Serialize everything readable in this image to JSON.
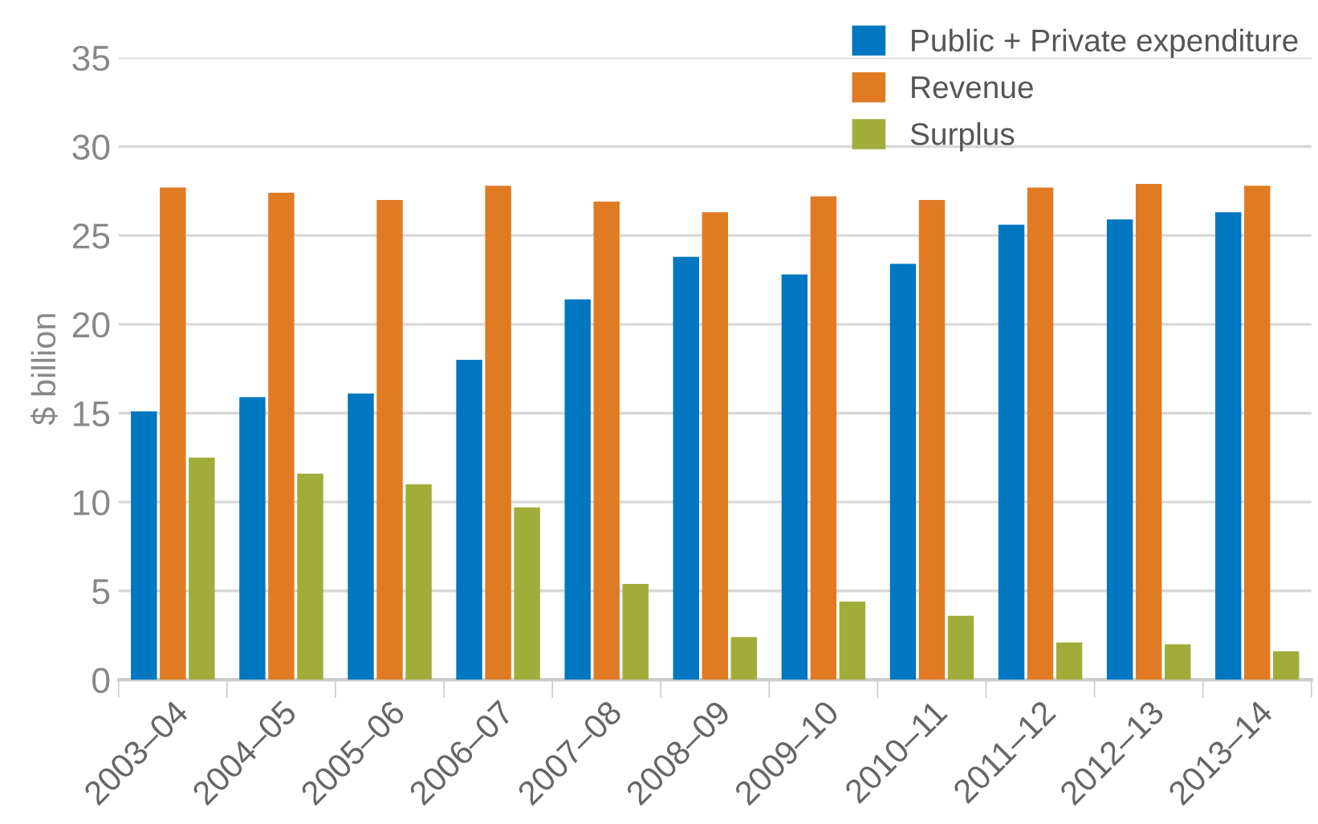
{
  "chart_data": {
    "type": "bar",
    "ylabel": "$ billion",
    "categories": [
      "2003–04",
      "2004–05",
      "2005–06",
      "2006–07",
      "2007–08",
      "2008–09",
      "2009–10",
      "2010–11",
      "2011–12",
      "2012–13",
      "2013–14"
    ],
    "series": [
      {
        "name": "Public + Private expenditure",
        "color": "#0077c0",
        "values": [
          15.1,
          15.9,
          16.1,
          18.0,
          21.4,
          23.8,
          22.8,
          23.4,
          25.6,
          25.9,
          26.3
        ]
      },
      {
        "name": "Revenue",
        "color": "#e07b24",
        "values": [
          27.7,
          27.4,
          27.0,
          27.8,
          26.9,
          26.3,
          27.2,
          27.0,
          27.7,
          27.9,
          27.8
        ]
      },
      {
        "name": "Surplus",
        "color": "#a1ad3a",
        "values": [
          12.5,
          11.6,
          11.0,
          9.7,
          5.4,
          2.4,
          4.4,
          3.6,
          2.1,
          2.0,
          1.6
        ]
      }
    ],
    "ylim": [
      0,
      35
    ],
    "yticks": [
      0,
      5,
      10,
      15,
      20,
      25,
      30,
      35
    ],
    "grid": "y",
    "legend": "top right"
  }
}
